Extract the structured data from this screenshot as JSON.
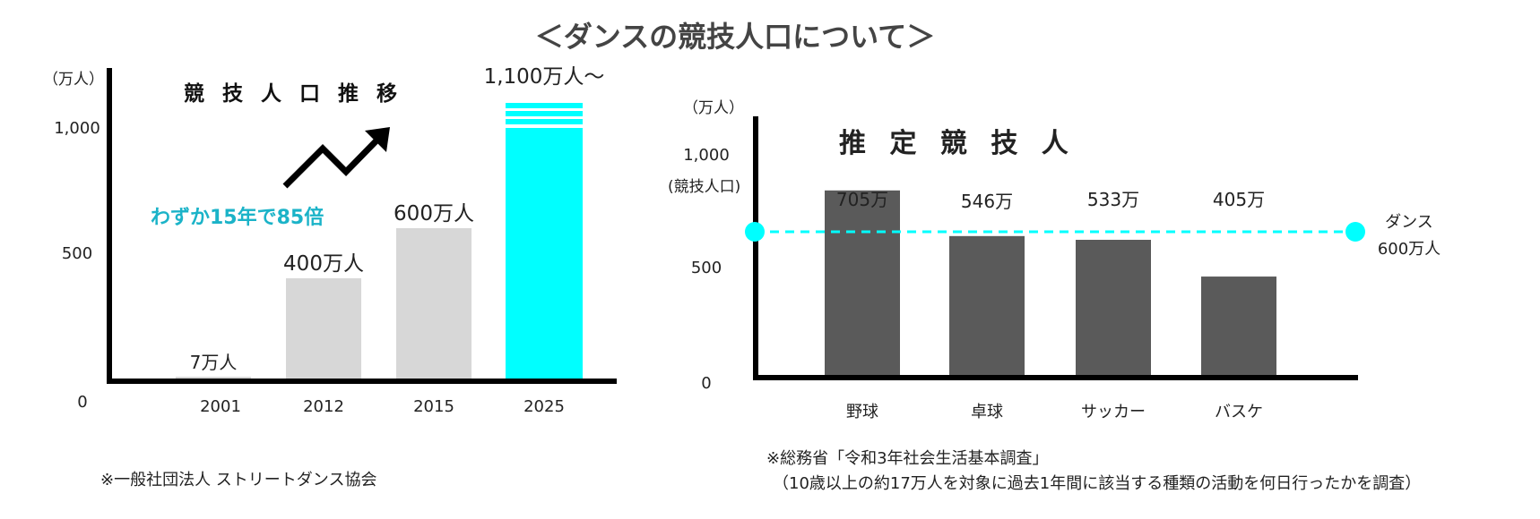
{
  "title": "＜ダンスの競技人口について＞",
  "colors": {
    "bar_gray": "#d7d7d7",
    "bar_highlight": "#00ffff",
    "bar_dark": "#5a5a5a",
    "accent_text": "#1bb3c8",
    "axis": "#000000"
  },
  "chart_data": [
    {
      "type": "bar",
      "subtitle": "競 技 人 口 推 移",
      "ylabel": "（万人）",
      "categories": [
        "2001",
        "2012",
        "2015",
        "2025"
      ],
      "values": [
        7,
        400,
        600,
        1100
      ],
      "data_labels": [
        "7万人",
        "400万人",
        "600万人",
        "1,100万人〜"
      ],
      "highlight_index": 3,
      "y_ticks": [
        {
          "value": 0,
          "label": "0"
        },
        {
          "value": 500,
          "label": "500"
        },
        {
          "value": 1000,
          "label": "1,000"
        }
      ],
      "ylim": [
        0,
        1350
      ],
      "annotation": "わずか15年で85倍",
      "arrow_icon": "trend-up-zigzag-arrow-icon",
      "source": "※一般社団法人 ストリートダンス協会"
    },
    {
      "type": "bar",
      "subtitle": "推 定 競 技 人",
      "ylabel": "（万人）",
      "ylabel2": "(競技人口)",
      "categories": [
        "野球",
        "卓球",
        "サッカー",
        "バスケ"
      ],
      "values": [
        705,
        546,
        533,
        405
      ],
      "data_labels": [
        "705万",
        "546万",
        "533万",
        "405万"
      ],
      "y_ticks": [
        {
          "value": 0,
          "label": "0"
        },
        {
          "value": 500,
          "label": "500"
        },
        {
          "value": 1000,
          "label": "1,000"
        }
      ],
      "ylim": [
        0,
        1200
      ],
      "reference_line": {
        "value": 600,
        "label_line1": "ダンス",
        "label_line2": "600万人",
        "style": "dashed"
      },
      "source_line1": "※総務省「令和3年社会生活基本調査」",
      "source_line2": "（10歳以上の約17万人を対象に過去1年間に該当する種類の活動を何日行ったかを調査）"
    }
  ]
}
